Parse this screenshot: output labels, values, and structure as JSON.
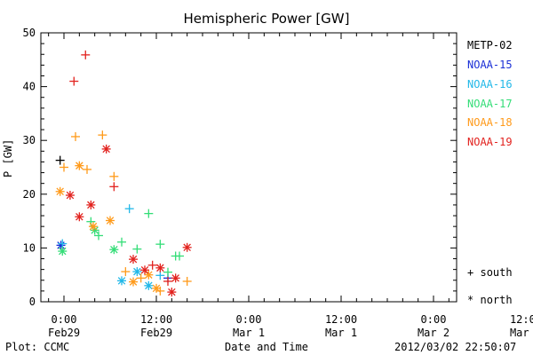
{
  "chart_data": {
    "type": "scatter",
    "title": "Hemispheric Power [GW]",
    "ylabel": "P [GW]",
    "xlabel": "Date and Time",
    "ylim": [
      0,
      50
    ],
    "yticks": [
      0,
      10,
      20,
      30,
      40,
      50
    ],
    "xlim_hours": [
      -3,
      51
    ],
    "xticks": [
      {
        "h": 0,
        "l1": "0:00",
        "l2": "Feb29"
      },
      {
        "h": 12,
        "l1": "12:00",
        "l2": "Feb29"
      },
      {
        "h": 24,
        "l1": "0:00",
        "l2": "Mar 1"
      },
      {
        "h": 36,
        "l1": "12:00",
        "l2": "Mar 1"
      },
      {
        "h": 48,
        "l1": "0:00",
        "l2": "Mar 2"
      },
      {
        "h": 60,
        "l1": "12:00",
        "l2": "Mar 2"
      }
    ],
    "legend": [
      {
        "name": "METP-02",
        "color": "#000000"
      },
      {
        "name": "NOAA-15",
        "color": "#1a2fd6"
      },
      {
        "name": "NOAA-16",
        "color": "#22b8e8"
      },
      {
        "name": "NOAA-17",
        "color": "#33dd77"
      },
      {
        "name": "NOAA-18",
        "color": "#ff9a1a"
      },
      {
        "name": "NOAA-19",
        "color": "#e2221e"
      }
    ],
    "symbols": [
      {
        "marker": "+",
        "label": "south"
      },
      {
        "marker": "*",
        "label": "north"
      }
    ],
    "series": [
      {
        "name": "METP-02",
        "color": "#000000",
        "points": [
          {
            "x": -0.5,
            "y": 26.3,
            "m": "+"
          }
        ]
      },
      {
        "name": "NOAA-15",
        "color": "#1a2fd6",
        "points": [
          {
            "x": -0.4,
            "y": 10.5,
            "m": "*"
          },
          {
            "x": 13.5,
            "y": 4.4,
            "m": "+"
          }
        ]
      },
      {
        "name": "NOAA-16",
        "color": "#22b8e8",
        "points": [
          {
            "x": -0.2,
            "y": 10.8,
            "m": "+"
          },
          {
            "x": 7.5,
            "y": 3.9,
            "m": "*"
          },
          {
            "x": 8.5,
            "y": 17.3,
            "m": "+"
          },
          {
            "x": 9.5,
            "y": 5.6,
            "m": "*"
          },
          {
            "x": 11.0,
            "y": 3.0,
            "m": "*"
          },
          {
            "x": 12.5,
            "y": 4.9,
            "m": "+"
          }
        ]
      },
      {
        "name": "NOAA-17",
        "color": "#33dd77",
        "points": [
          {
            "x": -0.2,
            "y": 9.4,
            "m": "*"
          },
          {
            "x": 3.5,
            "y": 14.9,
            "m": "+"
          },
          {
            "x": 4.0,
            "y": 13.3,
            "m": "*"
          },
          {
            "x": 4.5,
            "y": 12.3,
            "m": "+"
          },
          {
            "x": 6.5,
            "y": 9.7,
            "m": "*"
          },
          {
            "x": 7.5,
            "y": 11.1,
            "m": "+"
          },
          {
            "x": 9.5,
            "y": 9.8,
            "m": "+"
          },
          {
            "x": 11.0,
            "y": 16.4,
            "m": "+"
          },
          {
            "x": 12.5,
            "y": 10.7,
            "m": "+"
          },
          {
            "x": 13.5,
            "y": 5.5,
            "m": "+"
          },
          {
            "x": 14.5,
            "y": 8.5,
            "m": "+"
          },
          {
            "x": 15.0,
            "y": 8.5,
            "m": "+"
          }
        ]
      },
      {
        "name": "NOAA-18",
        "color": "#ff9a1a",
        "points": [
          {
            "x": -0.5,
            "y": 20.5,
            "m": "*"
          },
          {
            "x": 0.0,
            "y": 25.0,
            "m": "+"
          },
          {
            "x": 1.5,
            "y": 30.7,
            "m": "+"
          },
          {
            "x": 2.0,
            "y": 25.3,
            "m": "*"
          },
          {
            "x": 3.0,
            "y": 24.6,
            "m": "+"
          },
          {
            "x": 3.8,
            "y": 14.0,
            "m": "*"
          },
          {
            "x": 5.0,
            "y": 31.0,
            "m": "+"
          },
          {
            "x": 6.0,
            "y": 15.1,
            "m": "*"
          },
          {
            "x": 6.5,
            "y": 23.3,
            "m": "+"
          },
          {
            "x": 8.0,
            "y": 5.6,
            "m": "+"
          },
          {
            "x": 9.0,
            "y": 3.7,
            "m": "*"
          },
          {
            "x": 10.0,
            "y": 4.4,
            "m": "+"
          },
          {
            "x": 11.0,
            "y": 5.0,
            "m": "*"
          },
          {
            "x": 12.0,
            "y": 2.5,
            "m": "*"
          },
          {
            "x": 12.5,
            "y": 2.0,
            "m": "+"
          },
          {
            "x": 16.0,
            "y": 3.8,
            "m": "+"
          }
        ]
      },
      {
        "name": "NOAA-19",
        "color": "#e2221e",
        "points": [
          {
            "x": 0.8,
            "y": 19.8,
            "m": "*"
          },
          {
            "x": 1.3,
            "y": 41.0,
            "m": "+"
          },
          {
            "x": 2.0,
            "y": 15.8,
            "m": "*"
          },
          {
            "x": 2.8,
            "y": 45.9,
            "m": "+"
          },
          {
            "x": 3.5,
            "y": 18.0,
            "m": "*"
          },
          {
            "x": 5.5,
            "y": 28.4,
            "m": "*"
          },
          {
            "x": 6.5,
            "y": 21.4,
            "m": "+"
          },
          {
            "x": 9.0,
            "y": 7.9,
            "m": "*"
          },
          {
            "x": 10.5,
            "y": 5.9,
            "m": "*"
          },
          {
            "x": 11.5,
            "y": 6.8,
            "m": "+"
          },
          {
            "x": 12.5,
            "y": 6.3,
            "m": "*"
          },
          {
            "x": 13.5,
            "y": 3.8,
            "m": "+"
          },
          {
            "x": 14.5,
            "y": 4.4,
            "m": "*"
          },
          {
            "x": 14.0,
            "y": 1.8,
            "m": "*"
          },
          {
            "x": 16.0,
            "y": 10.1,
            "m": "*"
          }
        ]
      }
    ]
  },
  "footer": {
    "left": "Plot: CCMC",
    "right": "2012/03/02 22:50:07"
  }
}
